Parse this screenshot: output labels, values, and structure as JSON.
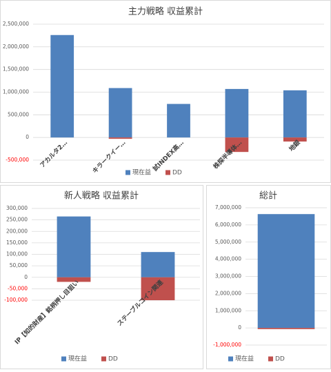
{
  "chart_data": [
    {
      "type": "bar",
      "stacked": true,
      "title": "主力戦略 収益累計",
      "categories": [
        "アカルタ2…",
        "キラークイー…",
        "試INDEX高…",
        "株探半導体…",
        "地銀"
      ],
      "series": [
        {
          "name": "現在益",
          "color": "#4f81bd",
          "values": [
            2260000,
            1090000,
            740000,
            1070000,
            1040000
          ]
        },
        {
          "name": "DD",
          "color": "#c0504d",
          "values": [
            0,
            -30000,
            0,
            -320000,
            -90000
          ]
        }
      ],
      "ylim": [
        -500000,
        2500000
      ],
      "yticks": [
        {
          "value": -500000,
          "label": "-500,000"
        },
        0,
        {
          "value": 500000,
          "label": "500,000"
        },
        {
          "value": 1000000,
          "label": "1,000,000"
        },
        {
          "value": 1500000,
          "label": "1,500,000"
        },
        {
          "value": 2000000,
          "label": "2,000,000"
        },
        {
          "value": 2500000,
          "label": "2,500,000"
        }
      ],
      "grid": true,
      "negative_tick_color": "#ff0000",
      "legend": "bottom"
    },
    {
      "type": "bar",
      "stacked": true,
      "title": "新人戦略 収益累計",
      "categories": [
        "IP【知的財産】銘柄押し目狙い",
        "ステーブルコイン関連"
      ],
      "series": [
        {
          "name": "現在益",
          "color": "#4f81bd",
          "values": [
            265000,
            110000
          ]
        },
        {
          "name": "DD",
          "color": "#c0504d",
          "values": [
            -20000,
            -100000
          ]
        }
      ],
      "ylim": [
        -100000,
        300000
      ],
      "yticks": [
        {
          "value": -100000,
          "label": "-100,000"
        },
        {
          "value": -50000,
          "label": "-50,000"
        },
        0,
        {
          "value": 50000,
          "label": "50,000"
        },
        {
          "value": 100000,
          "label": "100,000"
        },
        {
          "value": 150000,
          "label": "150,000"
        },
        {
          "value": 200000,
          "label": "200,000"
        },
        {
          "value": 250000,
          "label": "250,000"
        },
        {
          "value": 300000,
          "label": "300,000"
        }
      ],
      "grid": true,
      "negative_tick_color": "#ff0000",
      "legend": "bottom"
    },
    {
      "type": "bar",
      "stacked": true,
      "title": "総計",
      "categories": [
        null
      ],
      "series": [
        {
          "name": "現在益",
          "color": "#4f81bd",
          "values": [
            6630000
          ]
        },
        {
          "name": "DD",
          "color": "#c0504d",
          "values": [
            -70000
          ]
        }
      ],
      "ylim": [
        -1000000,
        7000000
      ],
      "yticks": [
        {
          "value": -1000000,
          "label": "-1,000,000"
        },
        0,
        {
          "value": 1000000,
          "label": "1,000,000"
        },
        {
          "value": 2000000,
          "label": "2,000,000"
        },
        {
          "value": 3000000,
          "label": "3,000,000"
        },
        {
          "value": 4000000,
          "label": "4,000,000"
        },
        {
          "value": 5000000,
          "label": "5,000,000"
        },
        {
          "value": 6000000,
          "label": "6,000,000"
        },
        {
          "value": 7000000,
          "label": "7,000,000"
        }
      ],
      "grid": true,
      "negative_tick_color": "#ff0000",
      "legend": "bottom"
    }
  ]
}
